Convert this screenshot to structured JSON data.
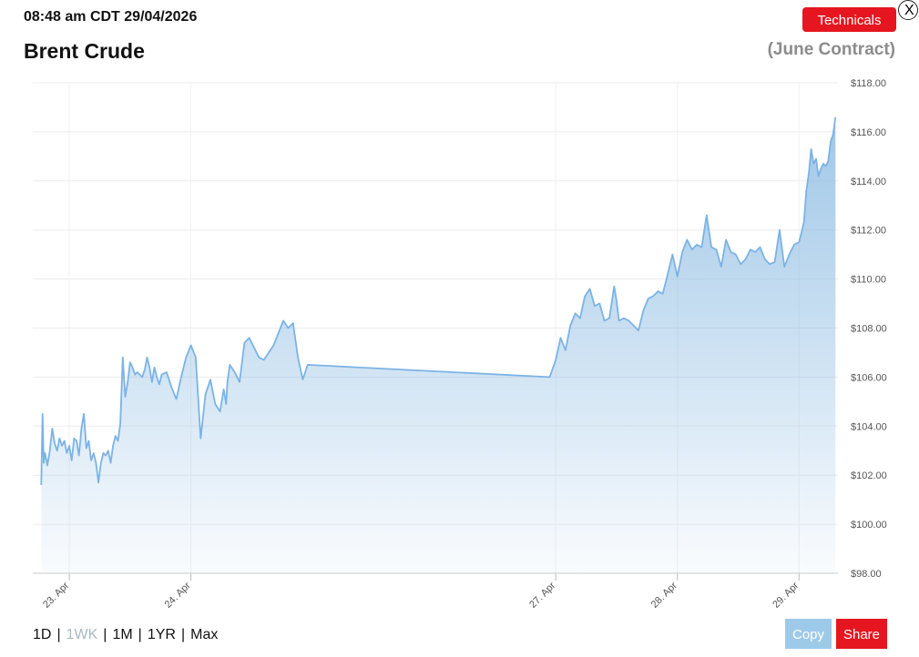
{
  "header": {
    "timestamp": "08:48 am CDT 29/04/2026",
    "title": "Brent Crude",
    "contract": "(June Contract)",
    "technicals_label": "Technicals",
    "close_label": "X"
  },
  "footer": {
    "ranges": [
      "1D",
      "1WK",
      "1M",
      "1YR",
      "Max"
    ],
    "active_range": "1WK",
    "separator": "|",
    "copy_label": "Copy",
    "share_label": "Share"
  },
  "colors": {
    "accent_red": "#e5161f",
    "line": "#7bb3e6",
    "copy_button": "#9ecaea"
  },
  "chart_data": {
    "type": "area",
    "title": "Brent Crude",
    "subtitle": "(June Contract)",
    "xlabel": "",
    "ylabel": "",
    "ylim": [
      98,
      118
    ],
    "yticks": [
      98,
      100,
      102,
      104,
      106,
      108,
      110,
      112,
      114,
      116,
      118
    ],
    "ytick_labels": [
      "$98.00",
      "$100.00",
      "$102.00",
      "$104.00",
      "$106.00",
      "$108.00",
      "$110.00",
      "$112.00",
      "$114.00",
      "$116.00",
      "$118.00"
    ],
    "xlim": [
      22.7,
      29.32
    ],
    "xticks": [
      23,
      24,
      27,
      28,
      29
    ],
    "xtick_labels": [
      "23. Apr",
      "24. Apr",
      "27. Apr",
      "28. Apr",
      "29. Apr"
    ],
    "x_unit": "day of April 2026 (trading-time scale)",
    "grid": true,
    "series": [
      {
        "x": [
          22.77,
          22.78,
          22.79,
          22.8,
          22.82,
          22.84,
          22.86,
          22.88,
          22.9,
          22.92,
          22.94,
          22.96,
          22.98,
          23.0,
          23.02,
          23.04,
          23.06,
          23.08,
          23.1,
          23.12,
          23.14,
          23.16,
          23.18,
          23.2,
          23.22,
          23.24,
          23.26,
          23.28,
          23.3,
          23.32,
          23.34,
          23.36,
          23.38,
          23.4,
          23.42,
          23.44,
          23.46,
          23.48,
          23.5,
          23.52,
          23.54,
          23.56,
          23.58,
          23.6,
          23.62,
          23.64,
          23.66,
          23.68,
          23.7,
          23.72,
          23.74,
          23.76,
          23.8,
          23.84,
          23.88,
          23.92,
          23.96,
          24.0,
          24.04,
          24.08,
          24.12,
          24.16,
          24.2,
          24.24,
          24.27,
          24.29,
          24.3,
          24.32,
          24.36,
          24.4,
          24.44,
          24.48,
          24.52,
          24.56,
          24.6,
          24.64,
          24.68,
          24.72,
          24.76,
          24.8,
          24.84,
          24.88,
          24.92,
          24.96,
          26.95,
          27.0,
          27.04,
          27.08,
          27.12,
          27.16,
          27.2,
          27.24,
          27.28,
          27.32,
          27.36,
          27.4,
          27.44,
          27.48,
          27.5,
          27.52,
          27.56,
          27.6,
          27.64,
          27.68,
          27.72,
          27.76,
          27.8,
          27.84,
          27.88,
          27.92,
          27.96,
          28.0,
          28.04,
          28.08,
          28.12,
          28.16,
          28.2,
          28.24,
          28.28,
          28.32,
          28.36,
          28.4,
          28.44,
          28.48,
          28.52,
          28.56,
          28.6,
          28.64,
          28.68,
          28.72,
          28.76,
          28.8,
          28.84,
          28.88,
          28.92,
          28.96,
          29.0,
          29.04,
          29.06,
          29.08,
          29.1,
          29.12,
          29.14,
          29.16,
          29.18,
          29.2,
          29.22,
          29.24,
          29.26,
          29.28,
          29.3
        ],
        "y": [
          101.6,
          104.5,
          102.5,
          102.9,
          102.4,
          103.0,
          103.9,
          103.3,
          103.0,
          103.5,
          103.2,
          103.4,
          102.9,
          103.2,
          102.6,
          103.5,
          103.4,
          102.8,
          103.9,
          104.5,
          103.1,
          103.4,
          102.6,
          102.9,
          102.5,
          101.7,
          102.5,
          102.9,
          102.8,
          103.0,
          102.5,
          103.2,
          103.6,
          103.4,
          104.1,
          106.8,
          105.2,
          105.8,
          106.6,
          106.4,
          106.1,
          106.2,
          106.1,
          106.0,
          106.3,
          106.8,
          106.4,
          105.8,
          106.4,
          106.0,
          105.7,
          106.1,
          106.2,
          105.6,
          105.1,
          106.0,
          106.8,
          107.3,
          106.8,
          103.5,
          105.3,
          105.9,
          104.9,
          104.6,
          105.5,
          104.9,
          105.8,
          106.5,
          106.2,
          105.8,
          107.4,
          107.6,
          107.2,
          106.8,
          106.7,
          107.0,
          107.3,
          107.8,
          108.3,
          108.0,
          108.2,
          106.8,
          105.9,
          106.5,
          106.0,
          106.7,
          107.6,
          107.1,
          108.1,
          108.6,
          108.4,
          109.3,
          109.6,
          108.9,
          109.0,
          108.3,
          108.4,
          109.7,
          109.1,
          108.3,
          108.4,
          108.3,
          108.1,
          107.9,
          108.7,
          109.2,
          109.3,
          109.5,
          109.4,
          110.2,
          111.0,
          110.1,
          111.1,
          111.6,
          111.2,
          111.4,
          111.3,
          112.6,
          111.3,
          111.2,
          110.5,
          111.6,
          111.1,
          111.0,
          110.6,
          110.8,
          111.2,
          111.1,
          111.3,
          110.8,
          110.6,
          110.7,
          112.0,
          110.5,
          111.0,
          111.4,
          111.5,
          112.3,
          113.6,
          114.3,
          115.3,
          114.7,
          114.9,
          114.2,
          114.5,
          114.7,
          114.6,
          114.8,
          115.6,
          115.9,
          116.6
        ]
      }
    ]
  }
}
